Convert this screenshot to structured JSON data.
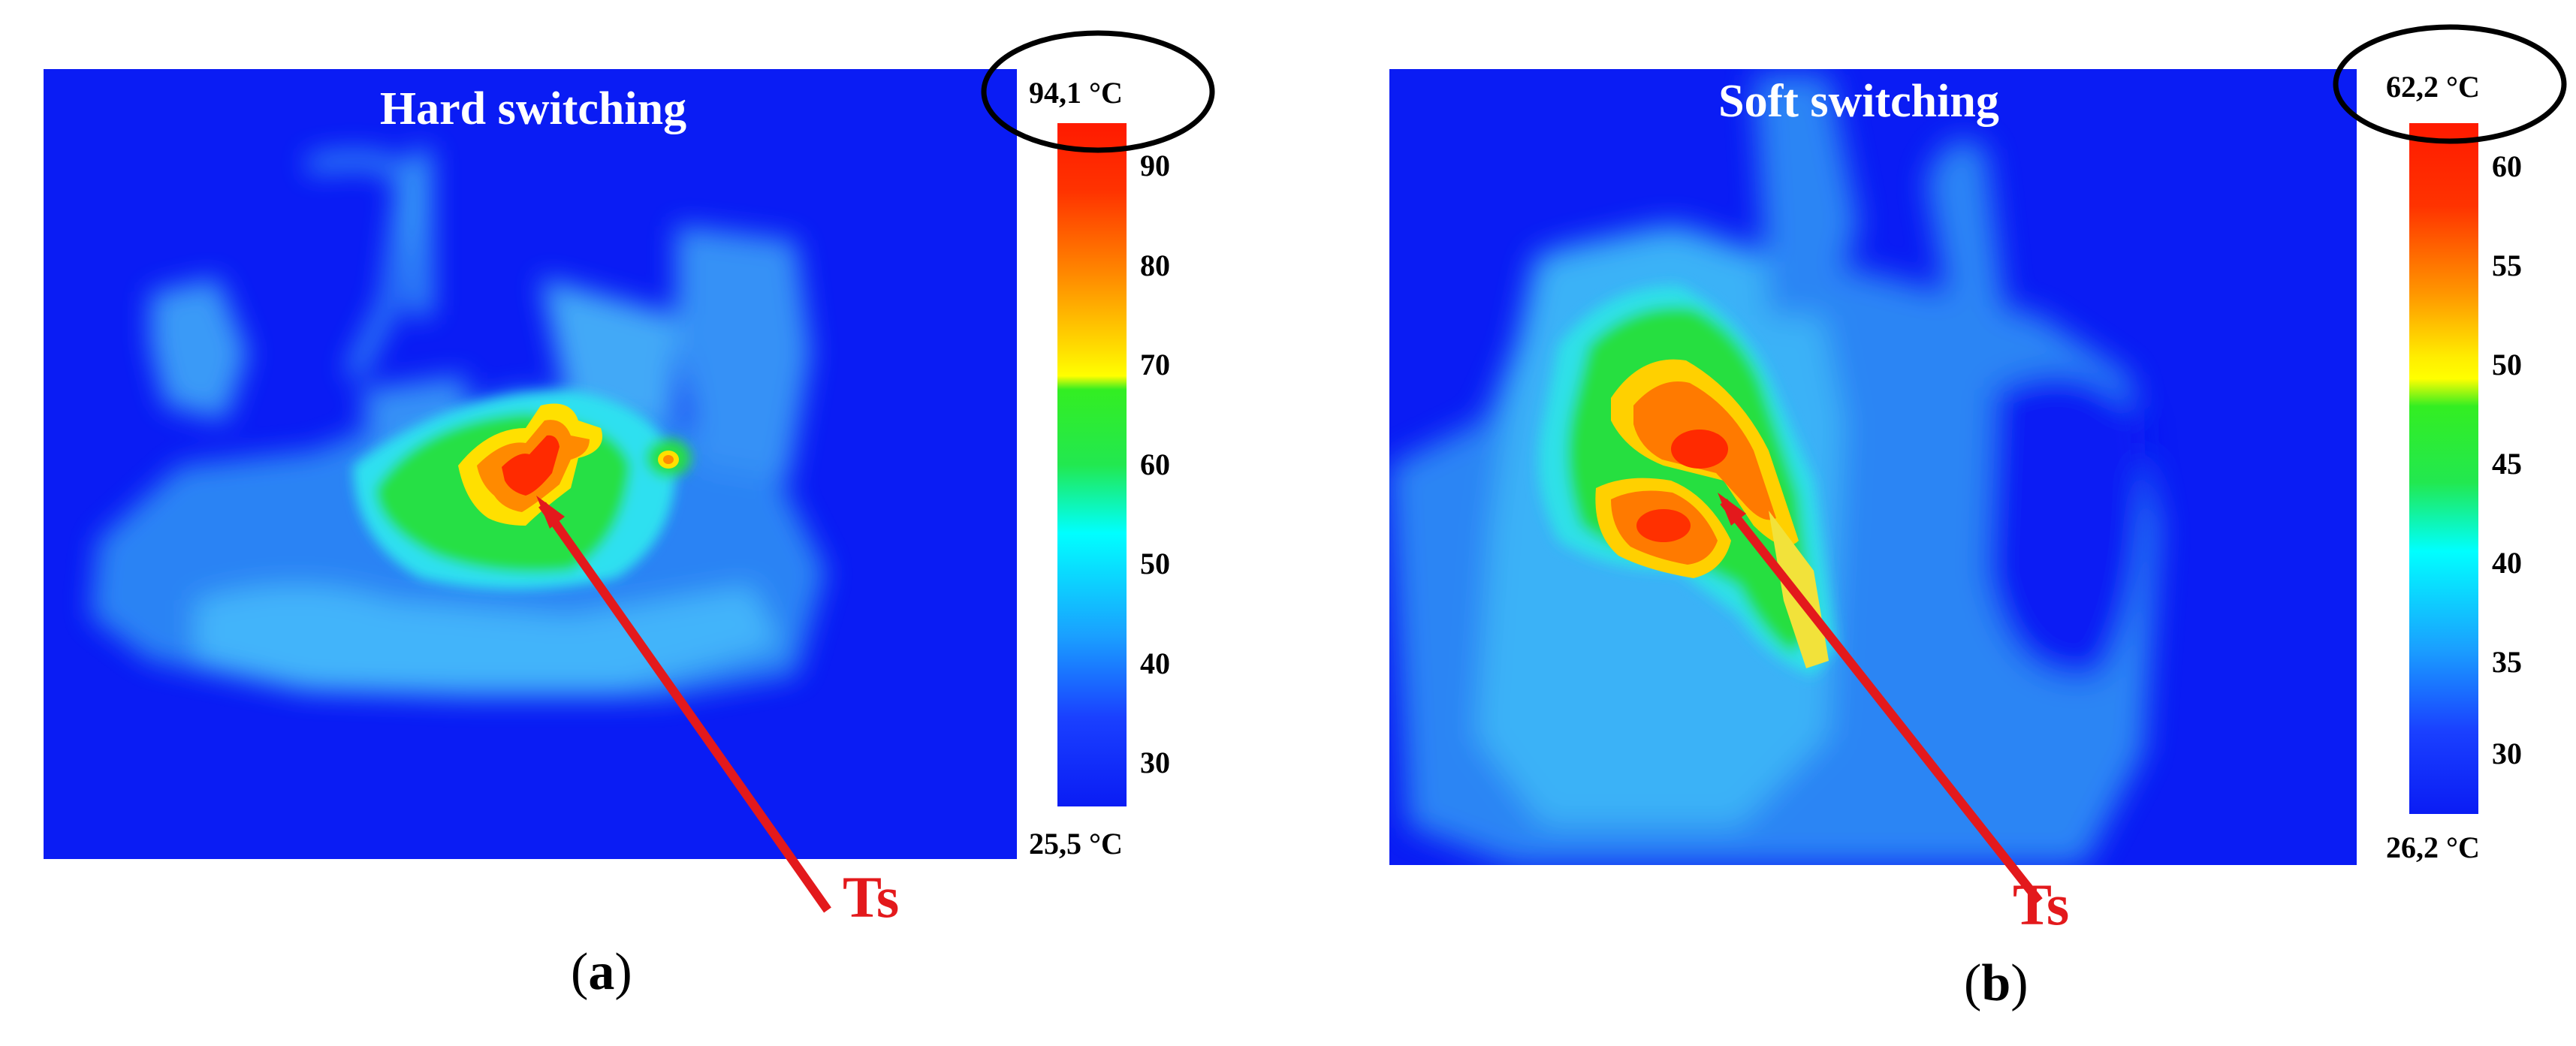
{
  "panels": [
    {
      "id": "a",
      "title": "Hard switching",
      "max_label": "94,1 °C",
      "min_label": "25,5 °C",
      "ticks": [
        "90",
        "80",
        "70",
        "60",
        "50",
        "40",
        "30"
      ],
      "marker": "Ts",
      "caption_letter": "a"
    },
    {
      "id": "b",
      "title": "Soft switching",
      "max_label": "62,2 °C",
      "min_label": "26,2 °C",
      "ticks": [
        "60",
        "55",
        "50",
        "45",
        "40",
        "35",
        "30"
      ],
      "marker": "Ts",
      "caption_letter": "b"
    }
  ],
  "colors": {
    "background_blue": "#0a1cf4",
    "arrow_red": "#e3191c",
    "hot_red": "#ff1a00",
    "warm_yellow": "#ffff00",
    "mid_green": "#19e619",
    "cool_cyan": "#00ffff"
  }
}
